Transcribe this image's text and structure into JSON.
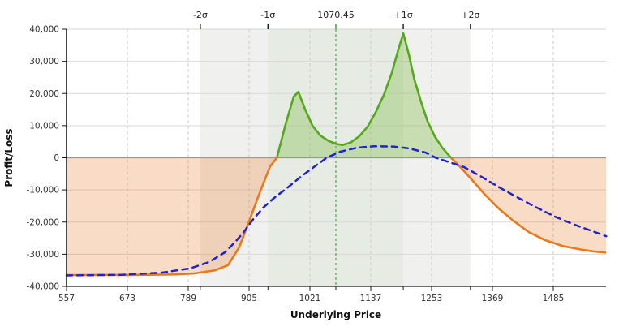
{
  "chart": {
    "y_axis_title": "Profit/Loss",
    "x_axis_title": "Underlying Price",
    "top_labels": [
      "-2σ",
      "-1σ",
      "1070.45",
      "+1σ",
      "+2σ"
    ],
    "y_tick_labels": [
      "40,000",
      "30,000",
      "20,000",
      "10,000",
      "0",
      "-10,000",
      "-20,000",
      "-30,000",
      "-40,000"
    ],
    "x_tick_labels": [
      "557",
      "673",
      "789",
      "905",
      "1021",
      "1137",
      "1253",
      "1369",
      "1485"
    ]
  },
  "chart_data": {
    "type": "line",
    "title": "",
    "xlabel": "Underlying Price",
    "ylabel": "Profit/Loss",
    "xlim": [
      557,
      1586
    ],
    "ylim": [
      -40000,
      40000
    ],
    "x_ticks": [
      557,
      673,
      789,
      905,
      1021,
      1137,
      1253,
      1369,
      1485
    ],
    "y_ticks": [
      40000,
      30000,
      20000,
      10000,
      0,
      -10000,
      -20000,
      -30000,
      -40000
    ],
    "grid": true,
    "legend": "none",
    "center_price_label": "1070.45",
    "center_price": 1070.45,
    "sigma_markers": {
      "minus_2": 812,
      "minus_1": 941,
      "center": 1070.45,
      "plus_1": 1199,
      "plus_2": 1327
    },
    "colors": {
      "payoff_positive": "#55a81c",
      "payoff_negative": "#e8791d",
      "payoff_fill_positive": "rgba(110,180,40,0.30)",
      "payoff_fill_negative": "rgba(232,121,29,0.26)",
      "current_line": "#2222cc",
      "center_line": "#2f9e2f",
      "band_outer": "#f0f1ee",
      "band_inner": "#e6ebe4"
    },
    "series": [
      {
        "name": "expiration_payoff",
        "style": "solid, green above zero / orange below zero, filled to zero line",
        "points": [
          [
            557,
            -36500
          ],
          [
            680,
            -36450
          ],
          [
            760,
            -36300
          ],
          [
            800,
            -36000
          ],
          [
            840,
            -35000
          ],
          [
            865,
            -33400
          ],
          [
            886,
            -27900
          ],
          [
            905,
            -19800
          ],
          [
            925,
            -11000
          ],
          [
            945,
            -2700
          ],
          [
            958,
            0
          ],
          [
            975,
            10700
          ],
          [
            990,
            19000
          ],
          [
            999,
            20500
          ],
          [
            1012,
            15000
          ],
          [
            1026,
            10000
          ],
          [
            1041,
            6900
          ],
          [
            1057,
            5200
          ],
          [
            1072,
            4300
          ],
          [
            1083,
            4000
          ],
          [
            1098,
            4700
          ],
          [
            1115,
            6700
          ],
          [
            1131,
            9700
          ],
          [
            1146,
            14000
          ],
          [
            1162,
            19600
          ],
          [
            1177,
            26400
          ],
          [
            1190,
            33900
          ],
          [
            1199,
            38700
          ],
          [
            1210,
            31900
          ],
          [
            1220,
            24400
          ],
          [
            1233,
            17300
          ],
          [
            1245,
            11500
          ],
          [
            1259,
            6700
          ],
          [
            1273,
            3200
          ],
          [
            1290,
            0
          ],
          [
            1309,
            -3100
          ],
          [
            1330,
            -6900
          ],
          [
            1355,
            -11500
          ],
          [
            1381,
            -15800
          ],
          [
            1409,
            -19600
          ],
          [
            1438,
            -23100
          ],
          [
            1469,
            -25600
          ],
          [
            1502,
            -27400
          ],
          [
            1536,
            -28500
          ],
          [
            1560,
            -29100
          ],
          [
            1586,
            -29500
          ]
        ]
      },
      {
        "name": "current_pl",
        "style": "dashed blue",
        "points": [
          [
            557,
            -36600
          ],
          [
            662,
            -36400
          ],
          [
            739,
            -35700
          ],
          [
            793,
            -34400
          ],
          [
            829,
            -32400
          ],
          [
            859,
            -29400
          ],
          [
            879,
            -26100
          ],
          [
            894,
            -23300
          ],
          [
            912,
            -19300
          ],
          [
            932,
            -15500
          ],
          [
            955,
            -12200
          ],
          [
            979,
            -9200
          ],
          [
            1005,
            -5700
          ],
          [
            1030,
            -2700
          ],
          [
            1053,
            0
          ],
          [
            1079,
            1900
          ],
          [
            1110,
            3100
          ],
          [
            1144,
            3600
          ],
          [
            1180,
            3500
          ],
          [
            1211,
            2900
          ],
          [
            1242,
            1600
          ],
          [
            1261,
            0
          ],
          [
            1289,
            -1500
          ],
          [
            1315,
            -2900
          ],
          [
            1346,
            -5700
          ],
          [
            1380,
            -9000
          ],
          [
            1415,
            -12200
          ],
          [
            1451,
            -15300
          ],
          [
            1488,
            -18300
          ],
          [
            1525,
            -20800
          ],
          [
            1556,
            -22600
          ],
          [
            1586,
            -24400
          ]
        ]
      }
    ]
  }
}
